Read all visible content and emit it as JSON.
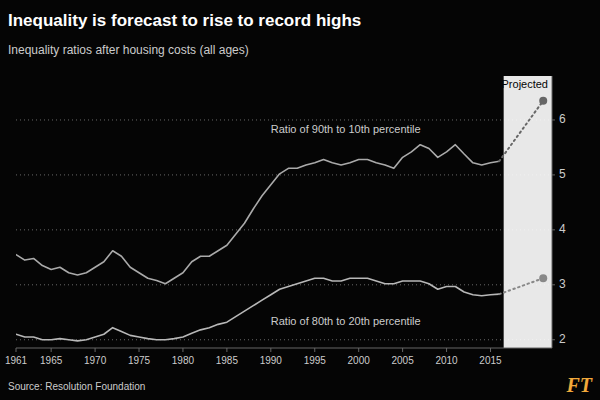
{
  "chart_data": {
    "type": "line",
    "title": "Inequality is forecast to rise to record highs",
    "subtitle": "Inequality ratios after housing costs (all ages)",
    "source": "Source: Resolution Foundation",
    "logo": "FT",
    "background": "#050505",
    "text_color": "#cccccc",
    "title_color": "#ffffff",
    "logo_color": "#f2a93b",
    "xlim": [
      1961,
      2022
    ],
    "xticks": [
      1961,
      1965,
      1970,
      1975,
      1980,
      1985,
      1990,
      1995,
      2000,
      2005,
      2010,
      2015
    ],
    "ylim": [
      1.85,
      6.8
    ],
    "yticks": [
      2,
      3,
      4,
      5,
      6
    ],
    "grid": true,
    "projected_region": {
      "start": 2016.5,
      "end": 2022,
      "color": "#e8e8e8",
      "label": "Projected"
    },
    "series": [
      {
        "color": "#aaaaaa",
        "line_style": "solid",
        "x": [
          1961,
          1962,
          1963,
          1964,
          1965,
          1966,
          1967,
          1968,
          1969,
          1970,
          1971,
          1972,
          1973,
          1974,
          1975,
          1976,
          1977,
          1978,
          1979,
          1980,
          1981,
          1982,
          1983,
          1984,
          1985,
          1986,
          1987,
          1988,
          1989,
          1990,
          1991,
          1992,
          1993,
          1994,
          1995,
          1996,
          1997,
          1998,
          1999,
          2000,
          2001,
          2002,
          2003,
          2004,
          2005,
          2006,
          2007,
          2008,
          2009,
          2010,
          2011,
          2012,
          2013,
          2014,
          2015,
          2016
        ],
        "values": [
          3.55,
          3.45,
          3.48,
          3.35,
          3.28,
          3.32,
          3.22,
          3.18,
          3.22,
          3.32,
          3.42,
          3.62,
          3.52,
          3.32,
          3.22,
          3.12,
          3.08,
          3.02,
          3.12,
          3.22,
          3.42,
          3.52,
          3.52,
          3.62,
          3.72,
          3.92,
          4.12,
          4.38,
          4.62,
          4.82,
          5.02,
          5.12,
          5.12,
          5.18,
          5.22,
          5.28,
          5.22,
          5.18,
          5.22,
          5.28,
          5.28,
          5.22,
          5.18,
          5.12,
          5.32,
          5.42,
          5.55,
          5.48,
          5.32,
          5.42,
          5.55,
          5.38,
          5.22,
          5.18,
          5.22,
          5.25
        ]
      },
      {
        "color": "#666666",
        "line_style": "dotted",
        "marker": "circle",
        "x": [
          2016,
          2021
        ],
        "values": [
          5.25,
          6.35
        ]
      },
      {
        "color": "#b8b8b8",
        "line_style": "solid",
        "x": [
          1961,
          1962,
          1963,
          1964,
          1965,
          1966,
          1967,
          1968,
          1969,
          1970,
          1971,
          1972,
          1973,
          1974,
          1975,
          1976,
          1977,
          1978,
          1979,
          1980,
          1981,
          1982,
          1983,
          1984,
          1985,
          1986,
          1987,
          1988,
          1989,
          1990,
          1991,
          1992,
          1993,
          1994,
          1995,
          1996,
          1997,
          1998,
          1999,
          2000,
          2001,
          2002,
          2003,
          2004,
          2005,
          2006,
          2007,
          2008,
          2009,
          2010,
          2011,
          2012,
          2013,
          2014,
          2015,
          2016
        ],
        "values": [
          2.1,
          2.05,
          2.05,
          2.0,
          2.0,
          2.02,
          2.0,
          1.98,
          2.0,
          2.05,
          2.1,
          2.22,
          2.15,
          2.08,
          2.05,
          2.02,
          2.0,
          2.0,
          2.02,
          2.05,
          2.12,
          2.18,
          2.22,
          2.28,
          2.32,
          2.42,
          2.52,
          2.62,
          2.72,
          2.82,
          2.92,
          2.97,
          3.02,
          3.07,
          3.12,
          3.12,
          3.07,
          3.07,
          3.12,
          3.12,
          3.12,
          3.07,
          3.02,
          3.02,
          3.07,
          3.07,
          3.07,
          3.02,
          2.92,
          2.97,
          2.97,
          2.87,
          2.82,
          2.8,
          2.82,
          2.83
        ]
      },
      {
        "color": "#888888",
        "line_style": "dotted",
        "marker": "circle",
        "x": [
          2016,
          2021
        ],
        "values": [
          2.83,
          3.12
        ]
      }
    ],
    "annotations": [
      {
        "text": "Ratio of 90th to 10th percentile",
        "x": 1990,
        "y": 5.72,
        "anchor": "bottom"
      },
      {
        "text": "Ratio of 80th to 20th percentile",
        "x": 1990,
        "y": 2.42,
        "anchor": "top"
      }
    ]
  }
}
